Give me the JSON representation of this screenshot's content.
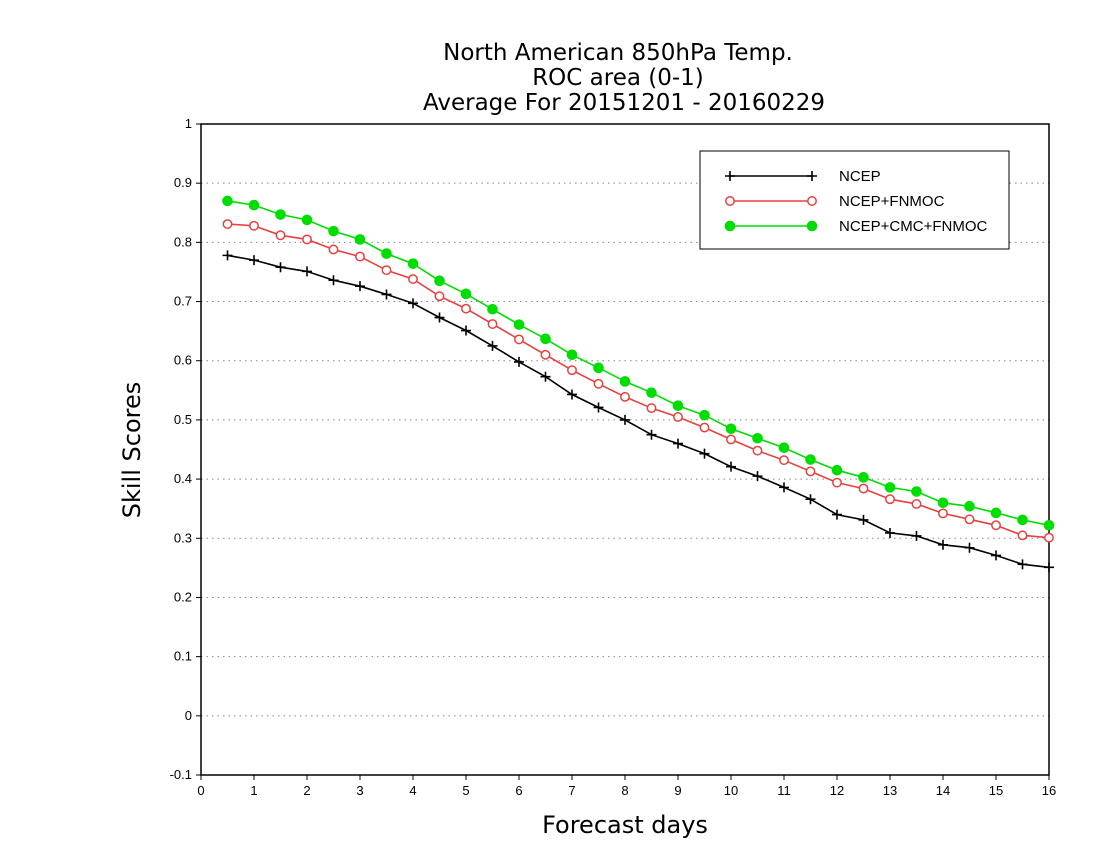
{
  "chart_data": {
    "type": "line",
    "title": [
      "North American 850hPa Temp.",
      "ROC area (0-1)",
      "Average For 20151201 - 20160229"
    ],
    "xlabel": "Forecast days",
    "ylabel": "Skill Scores",
    "xlim": [
      0,
      16
    ],
    "ylim": [
      -0.1,
      1
    ],
    "x_ticks": [
      "0",
      "1",
      "2",
      "3",
      "4",
      "5",
      "6",
      "7",
      "8",
      "9",
      "10",
      "11",
      "12",
      "13",
      "14",
      "15",
      "16"
    ],
    "y_ticks": [
      "-0.1",
      "0",
      "0.1",
      "0.2",
      "0.3",
      "0.4",
      "0.5",
      "0.6",
      "0.7",
      "0.8",
      "0.9",
      "1"
    ],
    "grid": "horizontal dotted",
    "legend_position": "top-right",
    "x": [
      0.5,
      1,
      1.5,
      2,
      2.5,
      3,
      3.5,
      4,
      4.5,
      5,
      5.5,
      6,
      6.5,
      7,
      7.5,
      8,
      8.5,
      9,
      9.5,
      10,
      10.5,
      11,
      11.5,
      12,
      12.5,
      13,
      13.5,
      14,
      14.5,
      15,
      15.5,
      16
    ],
    "series": [
      {
        "name": "NCEP",
        "color": "#000000",
        "marker": "plus",
        "values": [
          0.778,
          0.77,
          0.758,
          0.751,
          0.736,
          0.726,
          0.712,
          0.697,
          0.673,
          0.651,
          0.625,
          0.598,
          0.573,
          0.543,
          0.521,
          0.5,
          0.475,
          0.46,
          0.443,
          0.421,
          0.405,
          0.386,
          0.366,
          0.34,
          0.331,
          0.309,
          0.304,
          0.289,
          0.284,
          0.271,
          0.256,
          0.251
        ]
      },
      {
        "name": "NCEP+FNMOC",
        "color": "#e84040",
        "marker": "open-circle",
        "values": [
          0.831,
          0.828,
          0.812,
          0.805,
          0.788,
          0.776,
          0.753,
          0.738,
          0.709,
          0.688,
          0.662,
          0.636,
          0.61,
          0.584,
          0.561,
          0.539,
          0.52,
          0.505,
          0.487,
          0.467,
          0.448,
          0.432,
          0.413,
          0.394,
          0.384,
          0.366,
          0.358,
          0.342,
          0.332,
          0.322,
          0.305,
          0.301
        ]
      },
      {
        "name": "NCEP+CMC+FNMOC",
        "color": "#00dd00",
        "marker": "filled-circle",
        "values": [
          0.87,
          0.863,
          0.847,
          0.838,
          0.819,
          0.805,
          0.781,
          0.764,
          0.735,
          0.713,
          0.687,
          0.661,
          0.637,
          0.61,
          0.588,
          0.565,
          0.546,
          0.524,
          0.508,
          0.485,
          0.469,
          0.453,
          0.433,
          0.415,
          0.403,
          0.386,
          0.379,
          0.36,
          0.354,
          0.343,
          0.331,
          0.322
        ]
      }
    ]
  }
}
